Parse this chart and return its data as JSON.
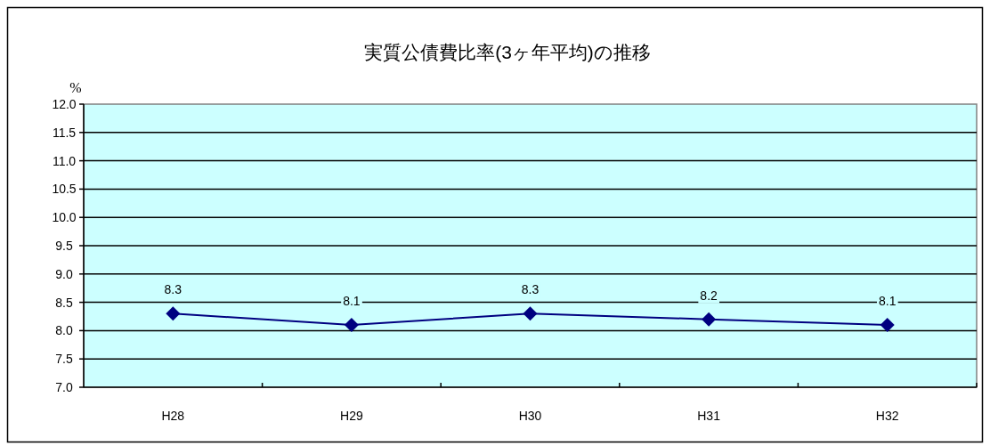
{
  "chart_data": {
    "type": "line",
    "title": "実質公債費比率(3ヶ年平均)の推移",
    "ylabel": "%",
    "categories": [
      "H28",
      "H29",
      "H30",
      "H31",
      "H32"
    ],
    "series": [
      {
        "color": "#000080",
        "values": [
          8.3,
          8.1,
          8.3,
          8.2,
          8.1
        ]
      }
    ],
    "ylim": [
      7,
      12
    ],
    "yticks": [
      {
        "value": 7,
        "label": "7.0"
      },
      7.5,
      {
        "value": 8,
        "label": "8.0"
      },
      8.5,
      {
        "value": 9,
        "label": "9.0"
      },
      9.5,
      {
        "value": 10,
        "label": "10.0"
      },
      10.5,
      {
        "value": 11,
        "label": "11.0"
      },
      11.5,
      {
        "value": 12,
        "label": "12.0"
      }
    ],
    "grid": "y",
    "marker": "diamond",
    "line_style": "solid",
    "data_labels": true
  }
}
